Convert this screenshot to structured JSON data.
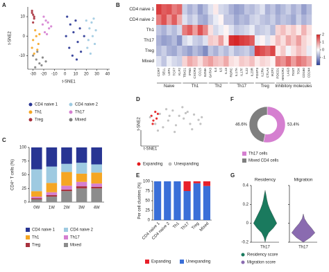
{
  "chart_data": [
    {
      "type": "scatter",
      "label": "A",
      "xlabel": "t-SNE1",
      "ylabel": "t-SNE2",
      "xlim": [
        -35,
        42
      ],
      "ylim": [
        -17,
        15
      ],
      "xticks": [
        -30,
        -20,
        -10,
        0,
        10,
        20,
        30,
        40
      ],
      "yticks": [
        -10,
        0,
        10
      ],
      "series": [
        {
          "name": "CD4 naive 1",
          "color": "#283593",
          "x": [
            2,
            5,
            8,
            12,
            15,
            4,
            10,
            14,
            7,
            18,
            1,
            11
          ],
          "y": [
            10,
            6,
            2,
            -3,
            -8,
            -6,
            8,
            4,
            -10,
            0,
            0,
            -12
          ]
        },
        {
          "name": "CD4 naive 2",
          "color": "#9ecae1",
          "x": [
            20,
            23,
            26,
            28,
            22,
            25,
            29,
            21,
            27,
            24
          ],
          "y": [
            8,
            4,
            0,
            -4,
            -2,
            7,
            3,
            -6,
            9,
            -9
          ]
        },
        {
          "name": "Th1",
          "color": "#f5a623",
          "x": [
            -30,
            -27,
            -25,
            -28,
            -24,
            -31,
            -26,
            -29
          ],
          "y": [
            -2,
            0,
            -4,
            3,
            1,
            -6,
            -7,
            -9
          ]
        },
        {
          "name": "Th17",
          "color": "#d57fd0",
          "x": [
            -21,
            -18,
            -15,
            -19,
            -16,
            -13,
            -20,
            -17
          ],
          "y": [
            6,
            8,
            4,
            2,
            7,
            5,
            10,
            1
          ]
        },
        {
          "name": "Treg",
          "color": "#a8323e",
          "x": [
            -31,
            -30,
            -29,
            -30,
            -31,
            -29
          ],
          "y": [
            13,
            11,
            9,
            7,
            12,
            10
          ]
        },
        {
          "name": "Mixed",
          "color": "#7f7f7f",
          "x": [
            -30,
            -27,
            -24,
            -21,
            -18,
            -26,
            -22,
            -28
          ],
          "y": [
            -10,
            -12,
            -14,
            -11,
            -13,
            -8,
            -15,
            -16
          ]
        }
      ]
    },
    {
      "type": "heatmap",
      "label": "B",
      "rows": [
        "CD4 naive 1",
        "CD4 naive 2",
        "Th1",
        "Th17",
        "Treg",
        "Mixed"
      ],
      "columns": [
        "CCR7",
        "SELL",
        "LEF1",
        "TCF7",
        "KLF2",
        "TBX21",
        "IFNG",
        "CXCR3",
        "CCL5",
        "GZMA",
        "GATA3",
        "IL4",
        "IL5",
        "IL13",
        "RORC",
        "IL17A",
        "IL17F",
        "IL22",
        "IL23R",
        "FOXP3",
        "IL2RA",
        "CTLA4",
        "IKZF2",
        "PDCD1",
        "HAVCR2",
        "LAG3",
        "TIGIT",
        "TOX",
        "CD160",
        "CD244"
      ],
      "groups": [
        {
          "name": "Naive",
          "count": 5
        },
        {
          "name": "Th1",
          "count": 5
        },
        {
          "name": "Th2",
          "count": 4
        },
        {
          "name": "Th17",
          "count": 5
        },
        {
          "name": "Treg",
          "count": 4
        },
        {
          "name": "Inhibitory molecules",
          "count": 7
        }
      ],
      "values": [
        [
          1.8,
          1.5,
          1.6,
          1.2,
          1.4,
          -0.5,
          -0.8,
          -0.6,
          -1,
          -0.7,
          -0.3,
          0.2,
          -0.4,
          -0.5,
          -0.8,
          -1,
          -0.9,
          -0.6,
          -0.7,
          -0.5,
          -0.3,
          -0.8,
          -0.6,
          -0.9,
          -0.7,
          -0.5,
          -0.8,
          -0.6,
          -1,
          -0.7
        ],
        [
          1.2,
          1.6,
          1.0,
          1.5,
          0.8,
          -0.3,
          -0.6,
          -0.4,
          -0.8,
          -0.9,
          -0.5,
          -0.2,
          0.1,
          -0.6,
          -0.6,
          -0.9,
          -0.7,
          -0.8,
          -0.5,
          -0.4,
          -0.6,
          -0.7,
          -0.5,
          -0.8,
          -0.6,
          -0.7,
          -0.9,
          -0.5,
          -0.8,
          -0.6
        ],
        [
          -0.6,
          -0.8,
          -0.5,
          -0.7,
          -0.4,
          1.2,
          1.5,
          0.9,
          1.6,
          1.1,
          0.3,
          -0.4,
          -0.2,
          0.1,
          -0.3,
          -0.6,
          -0.5,
          -0.4,
          -0.2,
          -0.6,
          -0.5,
          -0.4,
          -0.7,
          0.4,
          0.6,
          0.3,
          0.5,
          0.2,
          0.7,
          0.3
        ],
        [
          -0.8,
          -1.0,
          -0.9,
          -0.7,
          -1.1,
          -0.4,
          -0.2,
          -0.5,
          -0.6,
          -0.3,
          0.5,
          0.4,
          0.9,
          0.2,
          1.9,
          2.0,
          1.8,
          1.7,
          1.5,
          -0.2,
          0.1,
          -0.3,
          0.2,
          0.6,
          0.3,
          0.8,
          0.5,
          0.9,
          0.4,
          0.2
        ],
        [
          -0.7,
          -0.5,
          -0.8,
          -0.9,
          -0.6,
          -0.8,
          -1.0,
          -0.7,
          -0.9,
          -1.2,
          -0.6,
          -0.8,
          -0.5,
          -0.7,
          -0.4,
          -0.7,
          -0.6,
          -0.5,
          -0.8,
          1.8,
          1.6,
          1.4,
          1.7,
          0.2,
          0.5,
          -0.1,
          0.3,
          0.6,
          0.4,
          -0.2
        ],
        [
          -0.3,
          -0.6,
          -0.2,
          -0.4,
          -0.5,
          0.4,
          0.8,
          0.6,
          0.3,
          0.7,
          0.9,
          0.6,
          0.5,
          0.8,
          0.3,
          0.2,
          0.5,
          0.4,
          0.6,
          0.2,
          0.4,
          0.3,
          0.1,
          1.2,
          1.0,
          1.4,
          0.9,
          1.3,
          1.1,
          0.8
        ]
      ],
      "clim": [
        -2,
        2
      ],
      "cticks": [
        2,
        1,
        0,
        -1
      ],
      "colors": [
        "#2c3f9a",
        "#ffffff",
        "#d62728"
      ]
    },
    {
      "type": "stacked_bar",
      "label": "C",
      "ylabel": "CD4⁺ T cells (%)",
      "categories": [
        "0W",
        "1W",
        "2W",
        "3W",
        "4W"
      ],
      "ylim": [
        0,
        100
      ],
      "yticks": [
        0,
        25,
        50,
        75,
        100
      ],
      "series": [
        {
          "name": "CD4 naive 1",
          "color": "#283593",
          "values": [
            40,
            35,
            30,
            28,
            31
          ]
        },
        {
          "name": "CD4 naive 2",
          "color": "#9ecae1",
          "values": [
            40,
            30,
            15,
            20,
            15
          ]
        },
        {
          "name": "Th1",
          "color": "#f5a623",
          "values": [
            10,
            17,
            25,
            15,
            20
          ]
        },
        {
          "name": "Th17",
          "color": "#d57fd0",
          "values": [
            3,
            5,
            7,
            8,
            6
          ]
        },
        {
          "name": "Treg",
          "color": "#a8323e",
          "values": [
            2,
            3,
            3,
            4,
            3
          ]
        },
        {
          "name": "Mixed",
          "color": "#8c8c8c",
          "values": [
            5,
            10,
            20,
            25,
            25
          ]
        }
      ]
    },
    {
      "type": "scatter",
      "label": "D",
      "xlabel": "t-SNE1",
      "ylabel": "t-SNE2",
      "xlim": [
        0,
        100
      ],
      "ylim": [
        0,
        60
      ],
      "series": [
        {
          "name": "Expanding",
          "color": "#e41a1c",
          "x": [
            12,
            15,
            20,
            18,
            14,
            22
          ],
          "y": [
            42,
            35,
            38,
            48,
            30,
            45
          ]
        },
        {
          "name": "Unexpanding",
          "color": "#bdbdbd",
          "x": [
            10,
            18,
            25,
            30,
            38,
            45,
            50,
            55,
            62,
            68,
            72,
            78,
            85,
            90,
            22,
            35,
            48,
            60,
            75,
            88,
            40,
            65
          ],
          "y": [
            40,
            30,
            45,
            25,
            35,
            50,
            28,
            42,
            38,
            48,
            30,
            44,
            36,
            40,
            20,
            52,
            18,
            55,
            22,
            30,
            42,
            46
          ]
        }
      ]
    },
    {
      "type": "stacked_bar",
      "label": "E",
      "ylabel": "Per cell clusters (%)",
      "categories": [
        "CD4 naive 1",
        "CD4 naive 2",
        "Th1",
        "Th17",
        "Treg",
        "Mixed"
      ],
      "ylim": [
        0,
        100
      ],
      "yticks": [
        0,
        25,
        50,
        75,
        100
      ],
      "series": [
        {
          "name": "Expanding",
          "color": "#e8202a",
          "values": [
            0,
            0,
            0,
            25,
            5,
            12
          ]
        },
        {
          "name": "Unexpanding",
          "color": "#3a6fd8",
          "values": [
            100,
            100,
            100,
            75,
            95,
            88
          ]
        }
      ]
    },
    {
      "type": "donut",
      "label": "F",
      "categories": [
        "Th17 cells",
        "Mixed CD4 cells"
      ],
      "values": [
        53.4,
        46.6
      ],
      "value_labels": [
        "53.4%",
        "46.6%"
      ],
      "colors": [
        "#d57fd0",
        "#7f7f7f"
      ]
    },
    {
      "type": "violin",
      "label": "G",
      "ylim": [
        -0.2,
        0.4
      ],
      "yticks": [
        -0.2,
        0,
        0.2,
        0.4
      ],
      "series": [
        {
          "title": "Residency",
          "name": "Residency score",
          "category": "Th17",
          "color": "#1a7a5e",
          "y": [
            -0.2,
            -0.15,
            -0.1,
            -0.05,
            0,
            0.05,
            0.1,
            0.15,
            0.2,
            0.25,
            0.3,
            0.35
          ],
          "density": [
            0,
            0.1,
            0.3,
            0.7,
            1,
            0.8,
            0.6,
            0.4,
            0.25,
            0.15,
            0.08,
            0
          ]
        },
        {
          "title": "Migration",
          "name": "Migration score",
          "category": "Th17",
          "color": "#8a6bb0",
          "y": [
            -0.2,
            -0.15,
            -0.1,
            -0.05,
            0,
            0.05,
            0.1
          ],
          "density": [
            0,
            0.6,
            1,
            0.7,
            0.35,
            0.1,
            0
          ]
        }
      ]
    }
  ]
}
